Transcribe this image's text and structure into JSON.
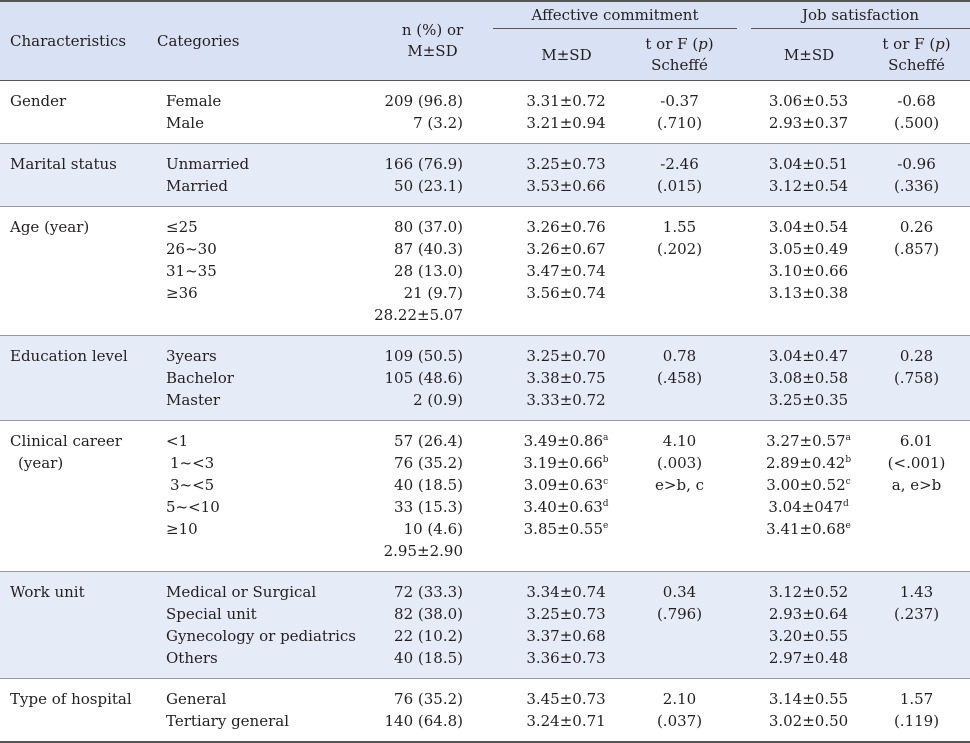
{
  "header": {
    "characteristics": "Characteristics",
    "categories": "Categories",
    "n_line1": "n (%) or",
    "n_line2": "M±SD",
    "affective": "Affective commitment",
    "job": "Job satisfaction",
    "msd": "M±SD",
    "t_line1_pre": "t or F (",
    "t_p": "p",
    "t_line1_post": ")",
    "t_line2": "Scheffé"
  },
  "groups": [
    {
      "char": [
        "Gender"
      ],
      "categories": [
        "Female",
        "Male"
      ],
      "n": [
        "209 (96.8)",
        "7 (3.2)"
      ],
      "ac": [
        [
          "3.31±0.72",
          ""
        ],
        [
          "3.21±0.94",
          ""
        ]
      ],
      "ac_stat": [
        "-0.37",
        "(.710)"
      ],
      "js": [
        [
          "3.06±0.53",
          ""
        ],
        [
          "2.93±0.37",
          ""
        ]
      ],
      "js_stat": [
        "-0.68",
        "(.500)"
      ]
    },
    {
      "char": [
        "Marital status"
      ],
      "categories": [
        "Unmarried",
        "Married"
      ],
      "n": [
        "166 (76.9)",
        "50 (23.1)"
      ],
      "ac": [
        [
          "3.25±0.73",
          ""
        ],
        [
          "3.53±0.66",
          ""
        ]
      ],
      "ac_stat": [
        "-2.46",
        "(.015)"
      ],
      "js": [
        [
          "3.04±0.51",
          ""
        ],
        [
          "3.12±0.54",
          ""
        ]
      ],
      "js_stat": [
        "-0.96",
        "(.336)"
      ]
    },
    {
      "char": [
        "Age (year)"
      ],
      "categories": [
        "≤25",
        "26~30",
        "31~35",
        "≥36"
      ],
      "n": [
        "80 (37.0)",
        "87 (40.3)",
        "28 (13.0)",
        "21 (9.7)",
        "28.22±5.07"
      ],
      "ac": [
        [
          "3.26±0.76",
          ""
        ],
        [
          "3.26±0.67",
          ""
        ],
        [
          "3.47±0.74",
          ""
        ],
        [
          "3.56±0.74",
          ""
        ]
      ],
      "ac_stat": [
        "1.55",
        "(.202)"
      ],
      "js": [
        [
          "3.04±0.54",
          ""
        ],
        [
          "3.05±0.49",
          ""
        ],
        [
          "3.10±0.66",
          ""
        ],
        [
          "3.13±0.38",
          ""
        ]
      ],
      "js_stat": [
        "0.26",
        "(.857)"
      ]
    },
    {
      "char": [
        "Education level"
      ],
      "categories": [
        "3years",
        "Bachelor",
        "Master"
      ],
      "n": [
        "109 (50.5)",
        "105 (48.6)",
        "2 (0.9)"
      ],
      "ac": [
        [
          "3.25±0.70",
          ""
        ],
        [
          "3.38±0.75",
          ""
        ],
        [
          "3.33±0.72",
          ""
        ]
      ],
      "ac_stat": [
        "0.78",
        "(.458)"
      ],
      "js": [
        [
          "3.04±0.47",
          ""
        ],
        [
          "3.08±0.58",
          ""
        ],
        [
          "3.25±0.35",
          ""
        ]
      ],
      "js_stat": [
        "0.28",
        "(.758)"
      ]
    },
    {
      "char": [
        "Clinical career",
        "(year)"
      ],
      "categories": [
        "<1",
        "1~<3",
        "3~<5",
        "5~<10",
        "≥10"
      ],
      "n": [
        "57 (26.4)",
        "76 (35.2)",
        "40 (18.5)",
        "33 (15.3)",
        "10 (4.6)",
        "2.95±2.90"
      ],
      "ac": [
        [
          "3.49±0.86",
          "a"
        ],
        [
          "3.19±0.66",
          "b"
        ],
        [
          "3.09±0.63",
          "c"
        ],
        [
          "3.40±0.63",
          "d"
        ],
        [
          "3.85±0.55",
          "e"
        ]
      ],
      "ac_stat": [
        "4.10",
        "(.003)",
        "e>b, c"
      ],
      "js": [
        [
          "3.27±0.57",
          "a"
        ],
        [
          "2.89±0.42",
          "b"
        ],
        [
          "3.00±0.52",
          "c"
        ],
        [
          "3.04±047",
          "d"
        ],
        [
          "3.41±0.68",
          "e"
        ]
      ],
      "js_stat": [
        "6.01",
        "(<.001)",
        "a, e>b"
      ]
    },
    {
      "char": [
        "Work unit"
      ],
      "categories": [
        "Medical or Surgical",
        "Special unit",
        "Gynecology or pediatrics",
        "Others"
      ],
      "n": [
        "72 (33.3)",
        "82 (38.0)",
        "22 (10.2)",
        "40 (18.5)"
      ],
      "ac": [
        [
          "3.34±0.74",
          ""
        ],
        [
          "3.25±0.73",
          ""
        ],
        [
          "3.37±0.68",
          ""
        ],
        [
          "3.36±0.73",
          ""
        ]
      ],
      "ac_stat": [
        "0.34",
        "(.796)"
      ],
      "js": [
        [
          "3.12±0.52",
          ""
        ],
        [
          "2.93±0.64",
          ""
        ],
        [
          "3.20±0.55",
          ""
        ],
        [
          "2.97±0.48",
          ""
        ]
      ],
      "js_stat": [
        "1.43",
        "(.237)"
      ]
    },
    {
      "char": [
        "Type of hospital"
      ],
      "categories": [
        "General",
        "Tertiary general"
      ],
      "n": [
        "76 (35.2)",
        "140 (64.8)"
      ],
      "ac": [
        [
          "3.45±0.73",
          ""
        ],
        [
          "3.24±0.71",
          ""
        ]
      ],
      "ac_stat": [
        "2.10",
        "(.037)"
      ],
      "js": [
        [
          "3.14±0.55",
          ""
        ],
        [
          "3.02±0.50",
          ""
        ]
      ],
      "js_stat": [
        "1.57",
        "(.119)"
      ]
    }
  ]
}
